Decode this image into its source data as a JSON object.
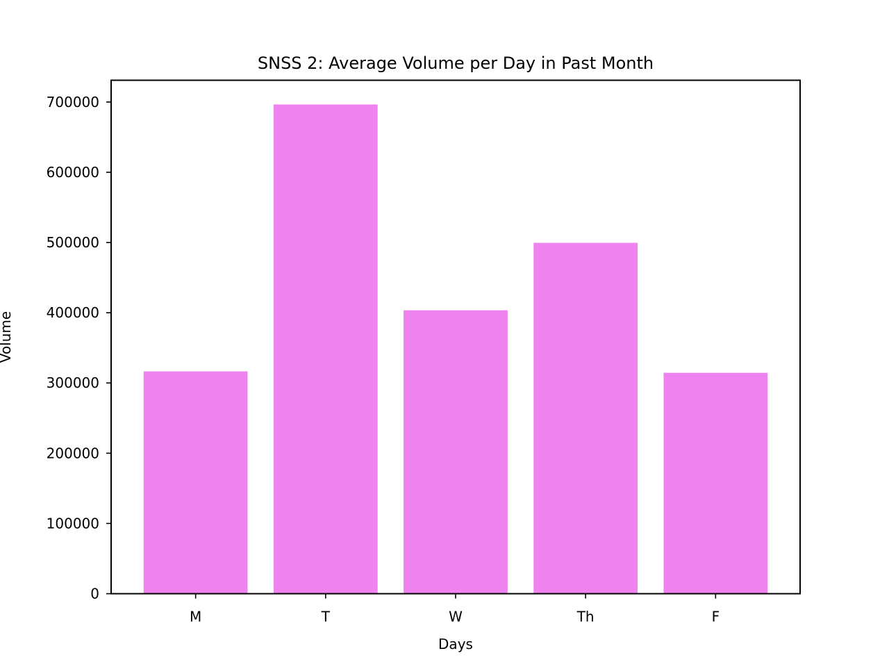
{
  "chart_data": {
    "type": "bar",
    "title": "SNSS 2: Average Volume per Day in Past Month",
    "xlabel": "Days",
    "ylabel": "Volume",
    "categories": [
      "M",
      "T",
      "W",
      "Th",
      "F"
    ],
    "values": [
      316500,
      696500,
      403500,
      499500,
      314500
    ],
    "ylim": [
      0,
      731000
    ],
    "yticks": [
      0,
      100000,
      200000,
      300000,
      400000,
      500000,
      600000,
      700000
    ],
    "bar_color": "#ee82ee",
    "grid": false,
    "legend": "none"
  }
}
